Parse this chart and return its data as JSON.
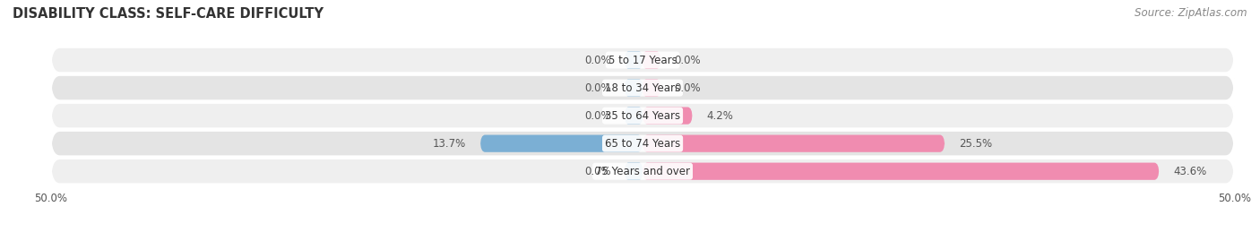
{
  "title": "DISABILITY CLASS: SELF-CARE DIFFICULTY",
  "source": "Source: ZipAtlas.com",
  "categories": [
    "5 to 17 Years",
    "18 to 34 Years",
    "35 to 64 Years",
    "65 to 74 Years",
    "75 Years and over"
  ],
  "male_values": [
    0.0,
    0.0,
    0.0,
    13.7,
    0.0
  ],
  "female_values": [
    0.0,
    0.0,
    4.2,
    25.5,
    43.6
  ],
  "x_min": -50.0,
  "x_max": 50.0,
  "male_color": "#7bafd4",
  "female_color": "#f08cb0",
  "row_bg_color_odd": "#efefef",
  "row_bg_color_even": "#e4e4e4",
  "label_color": "#555555",
  "title_fontsize": 10.5,
  "label_fontsize": 8.5,
  "cat_fontsize": 8.5,
  "tick_fontsize": 8.5,
  "source_fontsize": 8.5,
  "male_stub": 1.5,
  "female_stub": 1.5
}
